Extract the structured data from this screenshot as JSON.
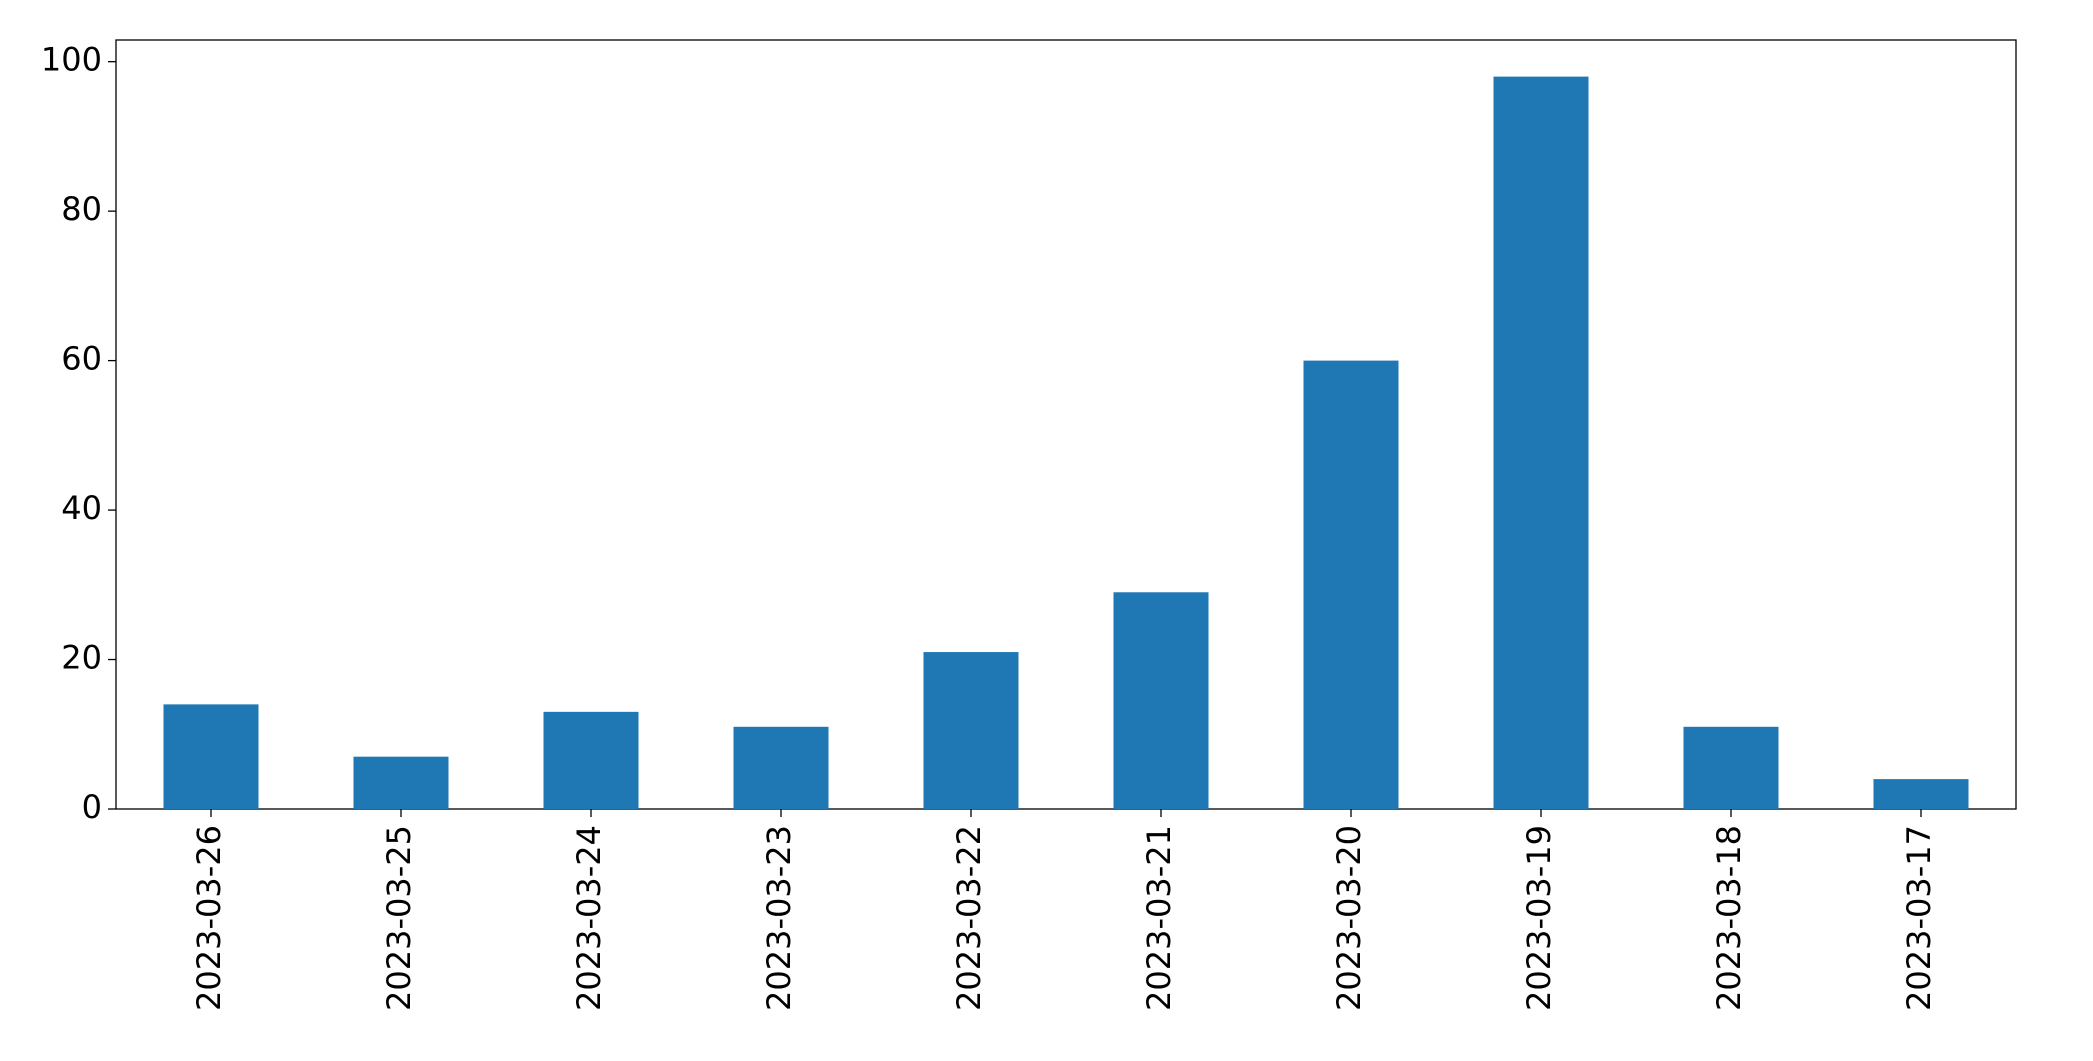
{
  "chart_data": {
    "type": "bar",
    "categories": [
      "2023-03-26",
      "2023-03-25",
      "2023-03-24",
      "2023-03-23",
      "2023-03-22",
      "2023-03-21",
      "2023-03-20",
      "2023-03-19",
      "2023-03-18",
      "2023-03-17"
    ],
    "values": [
      14,
      7,
      13,
      11,
      21,
      29,
      60,
      98,
      11,
      4
    ],
    "color": "#1f77b4",
    "ylim": [
      0,
      102.9
    ],
    "yticks": [
      0,
      20,
      40,
      60,
      80,
      100
    ],
    "grid": false
  }
}
